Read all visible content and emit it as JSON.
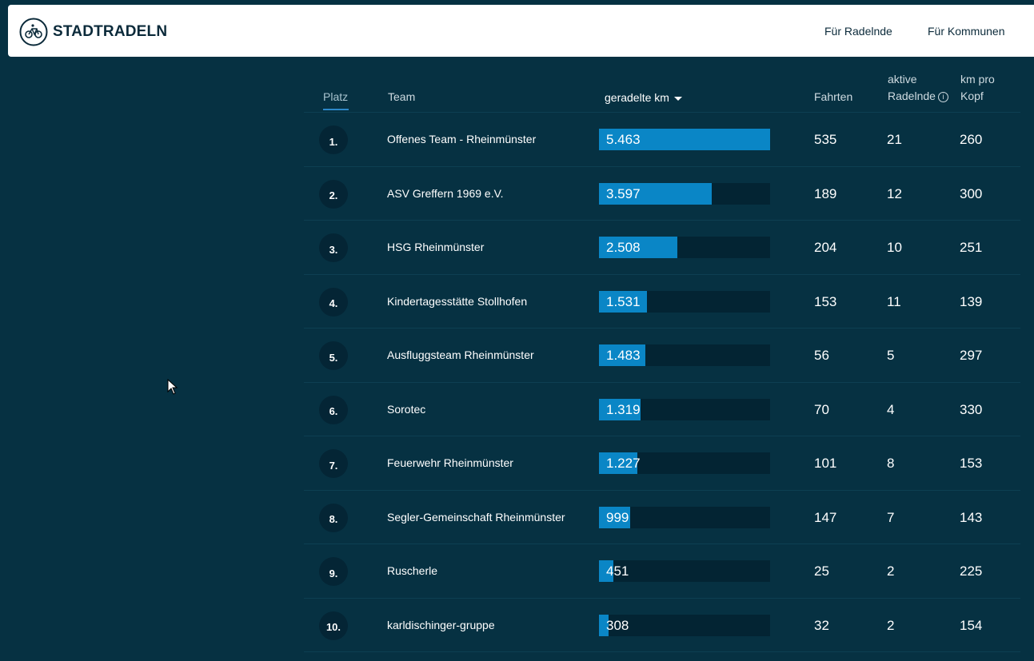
{
  "header": {
    "brand": "STADTRADELN",
    "nav": [
      "Für Radelnde",
      "Für Kommunen"
    ]
  },
  "table": {
    "col_platz": "Platz",
    "col_team": "Team",
    "col_km": "geradelte km",
    "col_fahrten": "Fahrten",
    "col_aktive_1": "aktive",
    "col_aktive_2": "Radelnde",
    "col_kmpro_1": "km pro",
    "col_kmpro_2": "Kopf",
    "sort_icon": "caret-down-icon",
    "info_icon": "info-icon",
    "max_km": 5463,
    "rows": [
      {
        "rank": "1.",
        "team": "Offenes Team - Rheinmünster",
        "km": "5.463",
        "km_value": 5463,
        "fahrten": "535",
        "aktive": "21",
        "kmpro": "260"
      },
      {
        "rank": "2.",
        "team": "ASV Greffern 1969 e.V.",
        "km": "3.597",
        "km_value": 3597,
        "fahrten": "189",
        "aktive": "12",
        "kmpro": "300"
      },
      {
        "rank": "3.",
        "team": "HSG Rheinmünster",
        "km": "2.508",
        "km_value": 2508,
        "fahrten": "204",
        "aktive": "10",
        "kmpro": "251"
      },
      {
        "rank": "4.",
        "team": "Kindertagesstätte Stollhofen",
        "km": "1.531",
        "km_value": 1531,
        "fahrten": "153",
        "aktive": "11",
        "kmpro": "139"
      },
      {
        "rank": "5.",
        "team": "Ausfluggsteam Rheinmünster",
        "km": "1.483",
        "km_value": 1483,
        "fahrten": "56",
        "aktive": "5",
        "kmpro": "297"
      },
      {
        "rank": "6.",
        "team": "Sorotec",
        "km": "1.319",
        "km_value": 1319,
        "fahrten": "70",
        "aktive": "4",
        "kmpro": "330"
      },
      {
        "rank": "7.",
        "team": "Feuerwehr Rheinmünster",
        "km": "1.227",
        "km_value": 1227,
        "fahrten": "101",
        "aktive": "8",
        "kmpro": "153"
      },
      {
        "rank": "8.",
        "team": "Segler-Gemeinschaft Rheinmünster",
        "km": "999",
        "km_value": 999,
        "fahrten": "147",
        "aktive": "7",
        "kmpro": "143"
      },
      {
        "rank": "9.",
        "team": "Ruscherle",
        "km": "451",
        "km_value": 451,
        "fahrten": "25",
        "aktive": "2",
        "kmpro": "225"
      },
      {
        "rank": "10.",
        "team": "karldischinger-gruppe",
        "km": "308",
        "km_value": 308,
        "fahrten": "32",
        "aktive": "2",
        "kmpro": "154"
      }
    ]
  },
  "colors": {
    "background": "#063142",
    "bar_fill": "#0a86c6",
    "bar_track": "#032433"
  }
}
